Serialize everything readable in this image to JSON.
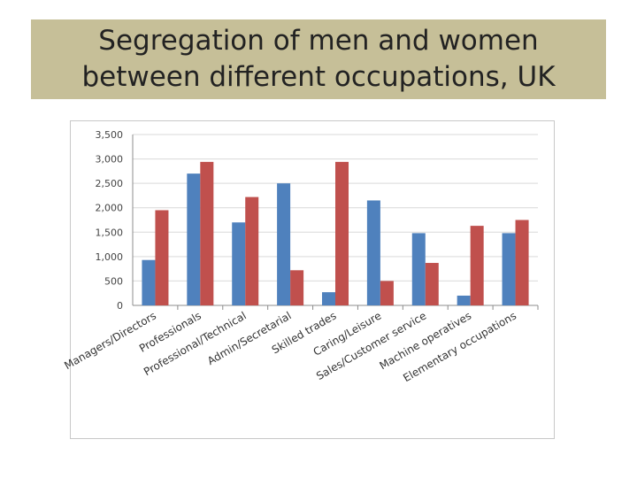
{
  "title": {
    "line1": "Segregation of men and women",
    "line2": "between different occupations, UK"
  },
  "colors": {
    "title_band": "#c6bf98",
    "men": "#4f81bd",
    "women": "#c0504d",
    "gridline": "#d9d9d9"
  },
  "chart_data": {
    "type": "bar",
    "categories": [
      "Managers/Directors",
      "Professionals",
      "Professional/Technical",
      "Admin/Secretarial",
      "Skilled trades",
      "Caring/Leisure",
      "Sales/Customer service",
      "Machine operatives",
      "Elementary occupations"
    ],
    "series": [
      {
        "color": "#4f81bd",
        "values": [
          930,
          2700,
          1700,
          2500,
          270,
          2150,
          1480,
          200,
          1480
        ]
      },
      {
        "color": "#c0504d",
        "values": [
          1950,
          2940,
          2220,
          720,
          2940,
          500,
          870,
          1630,
          1750
        ]
      }
    ],
    "yticks": [
      "0",
      "500",
      "1,000",
      "1,500",
      "2,000",
      "2,500",
      "3,000",
      "3,500"
    ],
    "ylim": [
      0,
      3500
    ],
    "grid": true,
    "legend": "none"
  }
}
